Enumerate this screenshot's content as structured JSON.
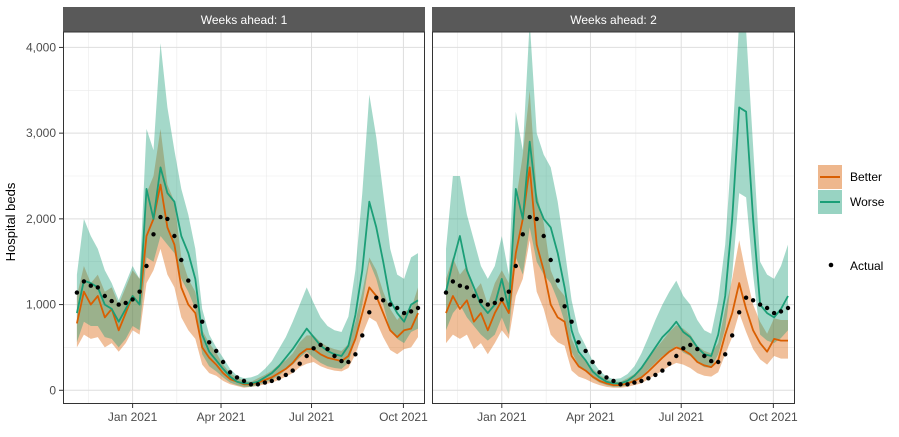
{
  "chart_data": {
    "type": "line",
    "ylabel": "Hospital beds",
    "xlabel": "",
    "y_ticks": [
      0,
      1000,
      2000,
      3000,
      4000
    ],
    "y_tick_labels": [
      "0",
      "1,000",
      "2,000",
      "3,000",
      "4,000"
    ],
    "ylim": [
      -160,
      4180
    ],
    "xlim": [
      0,
      52
    ],
    "x_ticks": [
      {
        "x": 10,
        "label": "Jan 2021"
      },
      {
        "x": 22.7,
        "label": "Apr 2021"
      },
      {
        "x": 35.7,
        "label": "Jul 2021"
      },
      {
        "x": 48.9,
        "label": "Oct 2021"
      }
    ],
    "grid": true,
    "legend": {
      "position": "right",
      "items": [
        {
          "key": "better",
          "label": "Better",
          "color": "#d95f02"
        },
        {
          "key": "worse",
          "label": "Worse",
          "color": "#1b9e77"
        },
        {
          "key": "actual",
          "label": "Actual",
          "color": "#000000"
        }
      ]
    },
    "actual": {
      "name": "Actual",
      "x": [
        2,
        3,
        4,
        5,
        6,
        7,
        8,
        9,
        10,
        11,
        12,
        13,
        14,
        15,
        16,
        17,
        18,
        19,
        20,
        21,
        22,
        23,
        24,
        25,
        26,
        27,
        28,
        29,
        30,
        31,
        32,
        33,
        34,
        35,
        36,
        37,
        38,
        39,
        40,
        41,
        42,
        43,
        44,
        45,
        46,
        47,
        48,
        49,
        50,
        51
      ],
      "values": [
        1140,
        1270,
        1220,
        1200,
        1100,
        1040,
        1000,
        1020,
        1060,
        1150,
        1450,
        1820,
        2020,
        2000,
        1800,
        1520,
        1280,
        980,
        800,
        560,
        460,
        330,
        210,
        150,
        110,
        70,
        70,
        90,
        110,
        140,
        180,
        230,
        310,
        400,
        490,
        530,
        480,
        400,
        340,
        330,
        420,
        640,
        910,
        1080,
        1050,
        1000,
        960,
        900,
        920,
        960
      ]
    },
    "panels": [
      {
        "title": "Weeks ahead: 1",
        "series": [
          {
            "name": "Better",
            "x": [
              2,
              3,
              4,
              5,
              6,
              7,
              8,
              9,
              10,
              11,
              12,
              13,
              14,
              15,
              16,
              17,
              18,
              19,
              20,
              21,
              22,
              23,
              24,
              25,
              26,
              27,
              28,
              29,
              30,
              31,
              32,
              33,
              34,
              35,
              36,
              37,
              38,
              39,
              40,
              41,
              42,
              43,
              44,
              45,
              46,
              47,
              48,
              49,
              50,
              51
            ],
            "values": [
              780,
              1150,
              1000,
              1100,
              850,
              950,
              700,
              900,
              1100,
              1000,
              1800,
              2000,
              2400,
              1900,
              1700,
              1200,
              1000,
              900,
              500,
              380,
              300,
              200,
              130,
              100,
              70,
              70,
              90,
              120,
              150,
              200,
              250,
              320,
              420,
              480,
              480,
              420,
              380,
              360,
              340,
              400,
              600,
              900,
              1200,
              1100,
              900,
              700,
              620,
              700,
              720,
              900
            ],
            "lower": [
              500,
              650,
              600,
              620,
              500,
              550,
              450,
              550,
              700,
              650,
              1250,
              1400,
              1650,
              1350,
              1200,
              850,
              700,
              600,
              300,
              200,
              170,
              110,
              70,
              50,
              30,
              40,
              50,
              70,
              90,
              120,
              160,
              200,
              270,
              310,
              330,
              280,
              250,
              230,
              220,
              260,
              420,
              650,
              850,
              800,
              620,
              470,
              420,
              480,
              500,
              620
            ],
            "upper": [
              1100,
              1450,
              1250,
              1350,
              1150,
              1200,
              1000,
              1200,
              1400,
              1300,
              2300,
              2500,
              3050,
              2400,
              2200,
              1550,
              1300,
              1150,
              700,
              550,
              440,
              300,
              200,
              150,
              110,
              100,
              140,
              180,
              230,
              300,
              350,
              430,
              560,
              640,
              640,
              560,
              510,
              480,
              460,
              540,
              800,
              1150,
              1550,
              1400,
              1150,
              950,
              820,
              920,
              950,
              1200
            ]
          },
          {
            "name": "Worse",
            "x": [
              2,
              3,
              4,
              5,
              6,
              7,
              8,
              9,
              10,
              11,
              12,
              13,
              14,
              15,
              16,
              17,
              18,
              19,
              20,
              21,
              22,
              23,
              24,
              25,
              26,
              27,
              28,
              29,
              30,
              31,
              32,
              33,
              34,
              35,
              36,
              37,
              38,
              39,
              40,
              41,
              42,
              43,
              44,
              45,
              46,
              47,
              48,
              49,
              50,
              51
            ],
            "values": [
              900,
              1280,
              1250,
              1200,
              1000,
              950,
              800,
              950,
              1100,
              1000,
              2350,
              2000,
              2600,
              2300,
              2200,
              1800,
              1600,
              1300,
              650,
              450,
              350,
              250,
              160,
              100,
              80,
              80,
              100,
              150,
              200,
              280,
              380,
              480,
              600,
              720,
              620,
              520,
              460,
              420,
              400,
              520,
              880,
              1400,
              2200,
              1900,
              1500,
              1050,
              900,
              800,
              1000,
              1050
            ],
            "lower": [
              560,
              800,
              750,
              750,
              620,
              600,
              500,
              600,
              750,
              700,
              1550,
              1500,
              1800,
              1700,
              1600,
              1300,
              1150,
              950,
              420,
              280,
              220,
              150,
              90,
              60,
              40,
              40,
              60,
              90,
              120,
              170,
              240,
              300,
              380,
              450,
              380,
              320,
              280,
              260,
              250,
              320,
              600,
              1000,
              1500,
              1300,
              1000,
              700,
              600,
              550,
              680,
              720
            ],
            "upper": [
              1350,
              2000,
              1800,
              1650,
              1400,
              1250,
              1050,
              1250,
              1450,
              1300,
              3050,
              2800,
              4050,
              3300,
              2800,
              2350,
              2050,
              1650,
              950,
              650,
              500,
              380,
              250,
              170,
              140,
              150,
              180,
              250,
              340,
              480,
              620,
              800,
              1000,
              1200,
              1020,
              850,
              750,
              700,
              680,
              860,
              1400,
              2300,
              3450,
              2950,
              2300,
              1650,
              1350,
              1300,
              1550,
              1600
            ]
          }
        ]
      },
      {
        "title": "Weeks ahead: 2",
        "series": [
          {
            "name": "Better",
            "x": [
              2,
              3,
              4,
              5,
              6,
              7,
              8,
              9,
              10,
              11,
              12,
              13,
              14,
              15,
              16,
              17,
              18,
              19,
              20,
              21,
              22,
              23,
              24,
              25,
              26,
              27,
              28,
              29,
              30,
              31,
              32,
              33,
              34,
              35,
              36,
              37,
              38,
              39,
              40,
              41,
              42,
              43,
              44,
              45,
              46,
              47,
              48,
              49,
              50,
              51
            ],
            "values": [
              900,
              1100,
              950,
              1050,
              800,
              900,
              700,
              900,
              1050,
              900,
              1600,
              2000,
              2600,
              1700,
              1400,
              1000,
              850,
              800,
              400,
              280,
              230,
              160,
              110,
              80,
              60,
              60,
              80,
              110,
              150,
              220,
              300,
              380,
              450,
              500,
              470,
              420,
              330,
              290,
              270,
              350,
              650,
              900,
              1250,
              950,
              700,
              550,
              450,
              600,
              580,
              580
            ],
            "lower": [
              550,
              650,
              600,
              650,
              480,
              550,
              420,
              550,
              700,
              600,
              1100,
              1300,
              1750,
              1150,
              950,
              650,
              560,
              520,
              230,
              160,
              130,
              90,
              60,
              40,
              30,
              30,
              40,
              60,
              80,
              130,
              180,
              230,
              280,
              320,
              300,
              260,
              200,
              170,
              160,
              210,
              420,
              620,
              900,
              680,
              480,
              360,
              300,
              400,
              370,
              370
            ],
            "upper": [
              1300,
              1550,
              1350,
              1450,
              1150,
              1250,
              1000,
              1250,
              1400,
              1250,
              2200,
              2750,
              3500,
              2300,
              1950,
              1400,
              1200,
              1100,
              600,
              420,
              350,
              250,
              180,
              130,
              100,
              100,
              140,
              190,
              260,
              370,
              480,
              580,
              680,
              760,
              720,
              650,
              520,
              460,
              430,
              550,
              950,
              1300,
              1750,
              1350,
              1000,
              800,
              660,
              840,
              820,
              820
            ],
            "band_lower_cap": 0
          },
          {
            "name": "Worse",
            "x": [
              2,
              3,
              4,
              5,
              6,
              7,
              8,
              9,
              10,
              11,
              12,
              13,
              14,
              15,
              16,
              17,
              18,
              19,
              20,
              21,
              22,
              23,
              24,
              25,
              26,
              27,
              28,
              29,
              30,
              31,
              32,
              33,
              34,
              35,
              36,
              37,
              38,
              39,
              40,
              41,
              42,
              43,
              44,
              45,
              46,
              47,
              48,
              49,
              50,
              51
            ],
            "values": [
              1150,
              1500,
              1800,
              1400,
              1200,
              1000,
              900,
              1000,
              1300,
              950,
              2350,
              2000,
              2900,
              2200,
              2000,
              1900,
              1600,
              1200,
              700,
              450,
              350,
              220,
              150,
              100,
              80,
              80,
              110,
              170,
              260,
              380,
              500,
              620,
              700,
              800,
              680,
              620,
              500,
              420,
              400,
              650,
              1100,
              2000,
              3300,
              3250,
              2000,
              1000,
              900,
              850,
              950,
              1100
            ],
            "lower": [
              700,
              900,
              1000,
              850,
              750,
              650,
              580,
              650,
              850,
              650,
              1550,
              1350,
              1900,
              1500,
              1350,
              1250,
              1050,
              800,
              450,
              290,
              220,
              140,
              90,
              60,
              40,
              40,
              60,
              100,
              160,
              240,
              320,
              400,
              450,
              520,
              440,
              400,
              320,
              270,
              260,
              420,
              720,
              1350,
              2300,
              2250,
              1350,
              650,
              580,
              550,
              610,
              700
            ],
            "upper": [
              1650,
              2500,
              2500,
              2050,
              1750,
              1450,
              1300,
              1450,
              1800,
              1350,
              3250,
              2800,
              4300,
              3000,
              2750,
              2600,
              2200,
              1650,
              1050,
              680,
              520,
              340,
              230,
              160,
              130,
              140,
              190,
              280,
              430,
              620,
              820,
              1000,
              1150,
              1280,
              1100,
              1000,
              820,
              700,
              660,
              1050,
              1700,
              2900,
              4300,
              4200,
              2850,
              1500,
              1350,
              1300,
              1450,
              1700
            ]
          }
        ]
      }
    ]
  }
}
